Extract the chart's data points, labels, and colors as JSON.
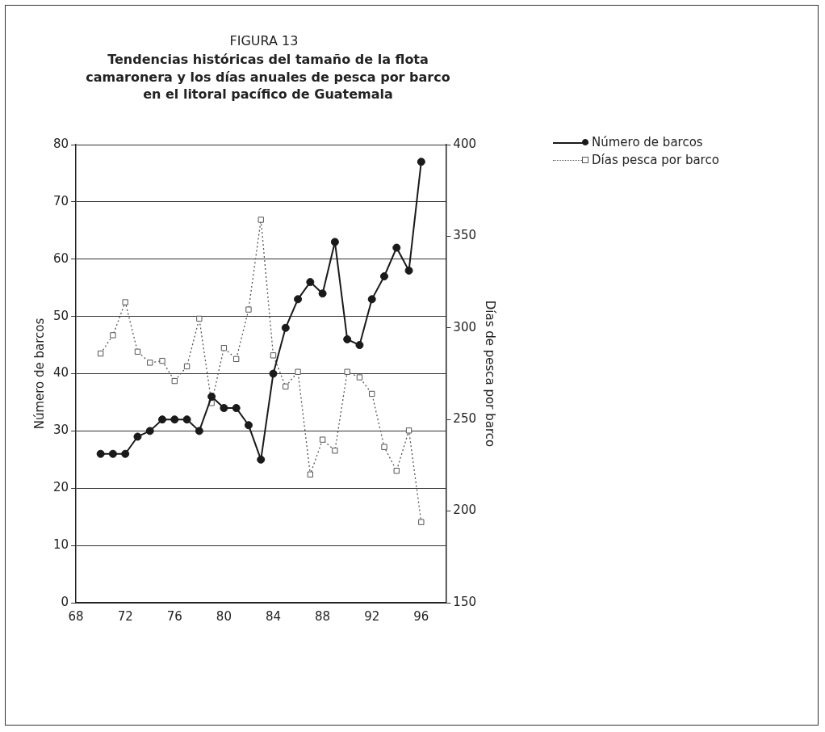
{
  "chart_data": {
    "type": "line",
    "subtitle": "FIGURA 13",
    "title": "Tendencias históricas del tamaño de la flota camaronera y los días anuales de pesca por barco en el litoral pacífico de Guatemala",
    "x": [
      70,
      71,
      72,
      73,
      74,
      75,
      76,
      77,
      78,
      79,
      80,
      81,
      82,
      83,
      84,
      85,
      86,
      87,
      88,
      89,
      90,
      91,
      92,
      93,
      94,
      95,
      96
    ],
    "series": [
      {
        "name": "Número de barcos",
        "color": "#1a1a1a",
        "marker": "circle",
        "line_style": "solid",
        "values": [
          26,
          26,
          26,
          29,
          30,
          32,
          32,
          32,
          30,
          36,
          34,
          34,
          31,
          25,
          40,
          48,
          53,
          56,
          54,
          63,
          46,
          45,
          53,
          57,
          62,
          58,
          77
        ]
      },
      {
        "name": "Días pesca por barco",
        "color": "#555555",
        "marker": "square",
        "line_style": "dotted",
        "axis": "y2",
        "values": [
          286,
          296,
          314,
          287,
          281,
          282,
          271,
          279,
          305,
          259,
          289,
          283,
          310,
          359,
          285,
          268,
          276,
          220,
          239,
          233,
          276,
          273,
          264,
          235,
          222,
          244,
          194
        ]
      }
    ],
    "xlim": [
      68,
      98
    ],
    "xticks": [
      68,
      72,
      76,
      80,
      84,
      88,
      92,
      96
    ],
    "ylim": [
      0,
      80
    ],
    "yticks": [
      0,
      10,
      20,
      30,
      40,
      50,
      60,
      70,
      80
    ],
    "y2lim": [
      150,
      400
    ],
    "y2ticks": [
      150,
      200,
      250,
      300,
      350,
      400
    ],
    "ylabel": "Número de barcos",
    "y2label": "Días de pesca por barco",
    "grid": "y",
    "legend": "top right"
  }
}
